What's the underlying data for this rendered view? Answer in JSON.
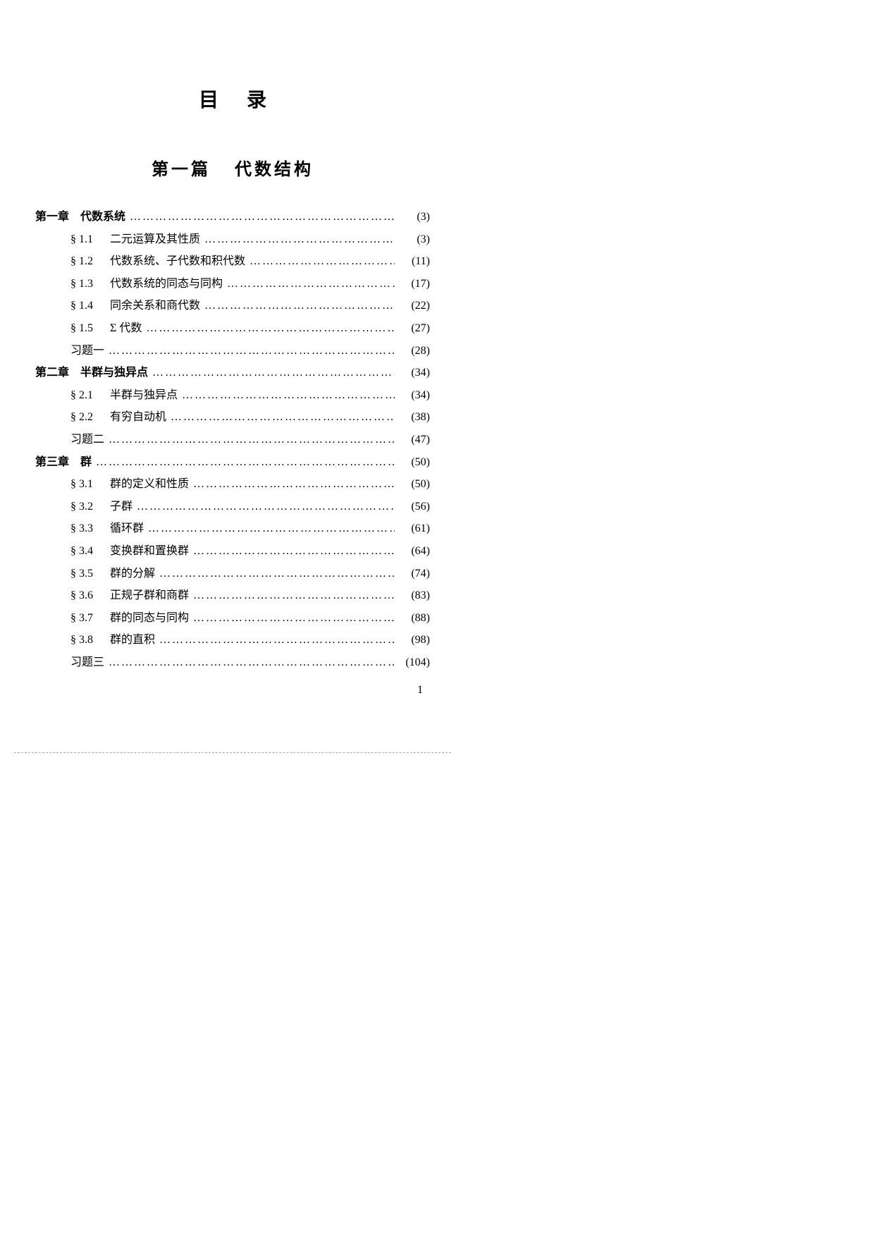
{
  "page": {
    "title": "目录",
    "part_no": "第一篇",
    "part_title": "代数结构",
    "footer_page": "1",
    "dots": "………………………………………………………………………………………………"
  },
  "toc": [
    {
      "type": "chapter",
      "label": "第一章　代数系统",
      "page": "(3)"
    },
    {
      "type": "section",
      "sec": "§ 1.1",
      "label": "二元运算及其性质",
      "page": "(3)"
    },
    {
      "type": "section",
      "sec": "§ 1.2",
      "label": "代数系统、子代数和积代数",
      "page": "(11)"
    },
    {
      "type": "section",
      "sec": "§ 1.3",
      "label": "代数系统的同态与同构",
      "page": "(17)"
    },
    {
      "type": "section",
      "sec": "§ 1.4",
      "label": "同余关系和商代数",
      "page": "(22)"
    },
    {
      "type": "section",
      "sec": "§ 1.5",
      "label": "Σ 代数",
      "page": "(27)"
    },
    {
      "type": "exercise",
      "label": "习题一",
      "page": "(28)"
    },
    {
      "type": "chapter",
      "label": "第二章　半群与独异点",
      "page": "(34)"
    },
    {
      "type": "section",
      "sec": "§ 2.1",
      "label": "半群与独异点",
      "page": "(34)"
    },
    {
      "type": "section",
      "sec": "§ 2.2",
      "label": "有穷自动机",
      "page": "(38)"
    },
    {
      "type": "exercise",
      "label": "习题二",
      "page": "(47)"
    },
    {
      "type": "chapter",
      "label": "第三章　群",
      "page": "(50)"
    },
    {
      "type": "section",
      "sec": "§ 3.1",
      "label": "群的定义和性质",
      "page": "(50)"
    },
    {
      "type": "section",
      "sec": "§ 3.2",
      "label": "子群",
      "page": "(56)"
    },
    {
      "type": "section",
      "sec": "§ 3.3",
      "label": "循环群",
      "page": "(61)"
    },
    {
      "type": "section",
      "sec": "§ 3.4",
      "label": "变换群和置换群",
      "page": "(64)"
    },
    {
      "type": "section",
      "sec": "§ 3.5",
      "label": "群的分解",
      "page": "(74)"
    },
    {
      "type": "section",
      "sec": "§ 3.6",
      "label": "正规子群和商群",
      "page": "(83)"
    },
    {
      "type": "section",
      "sec": "§ 3.7",
      "label": "群的同态与同构",
      "page": "(88)"
    },
    {
      "type": "section",
      "sec": "§ 3.8",
      "label": "群的直积",
      "page": "(98)"
    },
    {
      "type": "exercise",
      "label": "习题三",
      "page": "(104)"
    }
  ]
}
